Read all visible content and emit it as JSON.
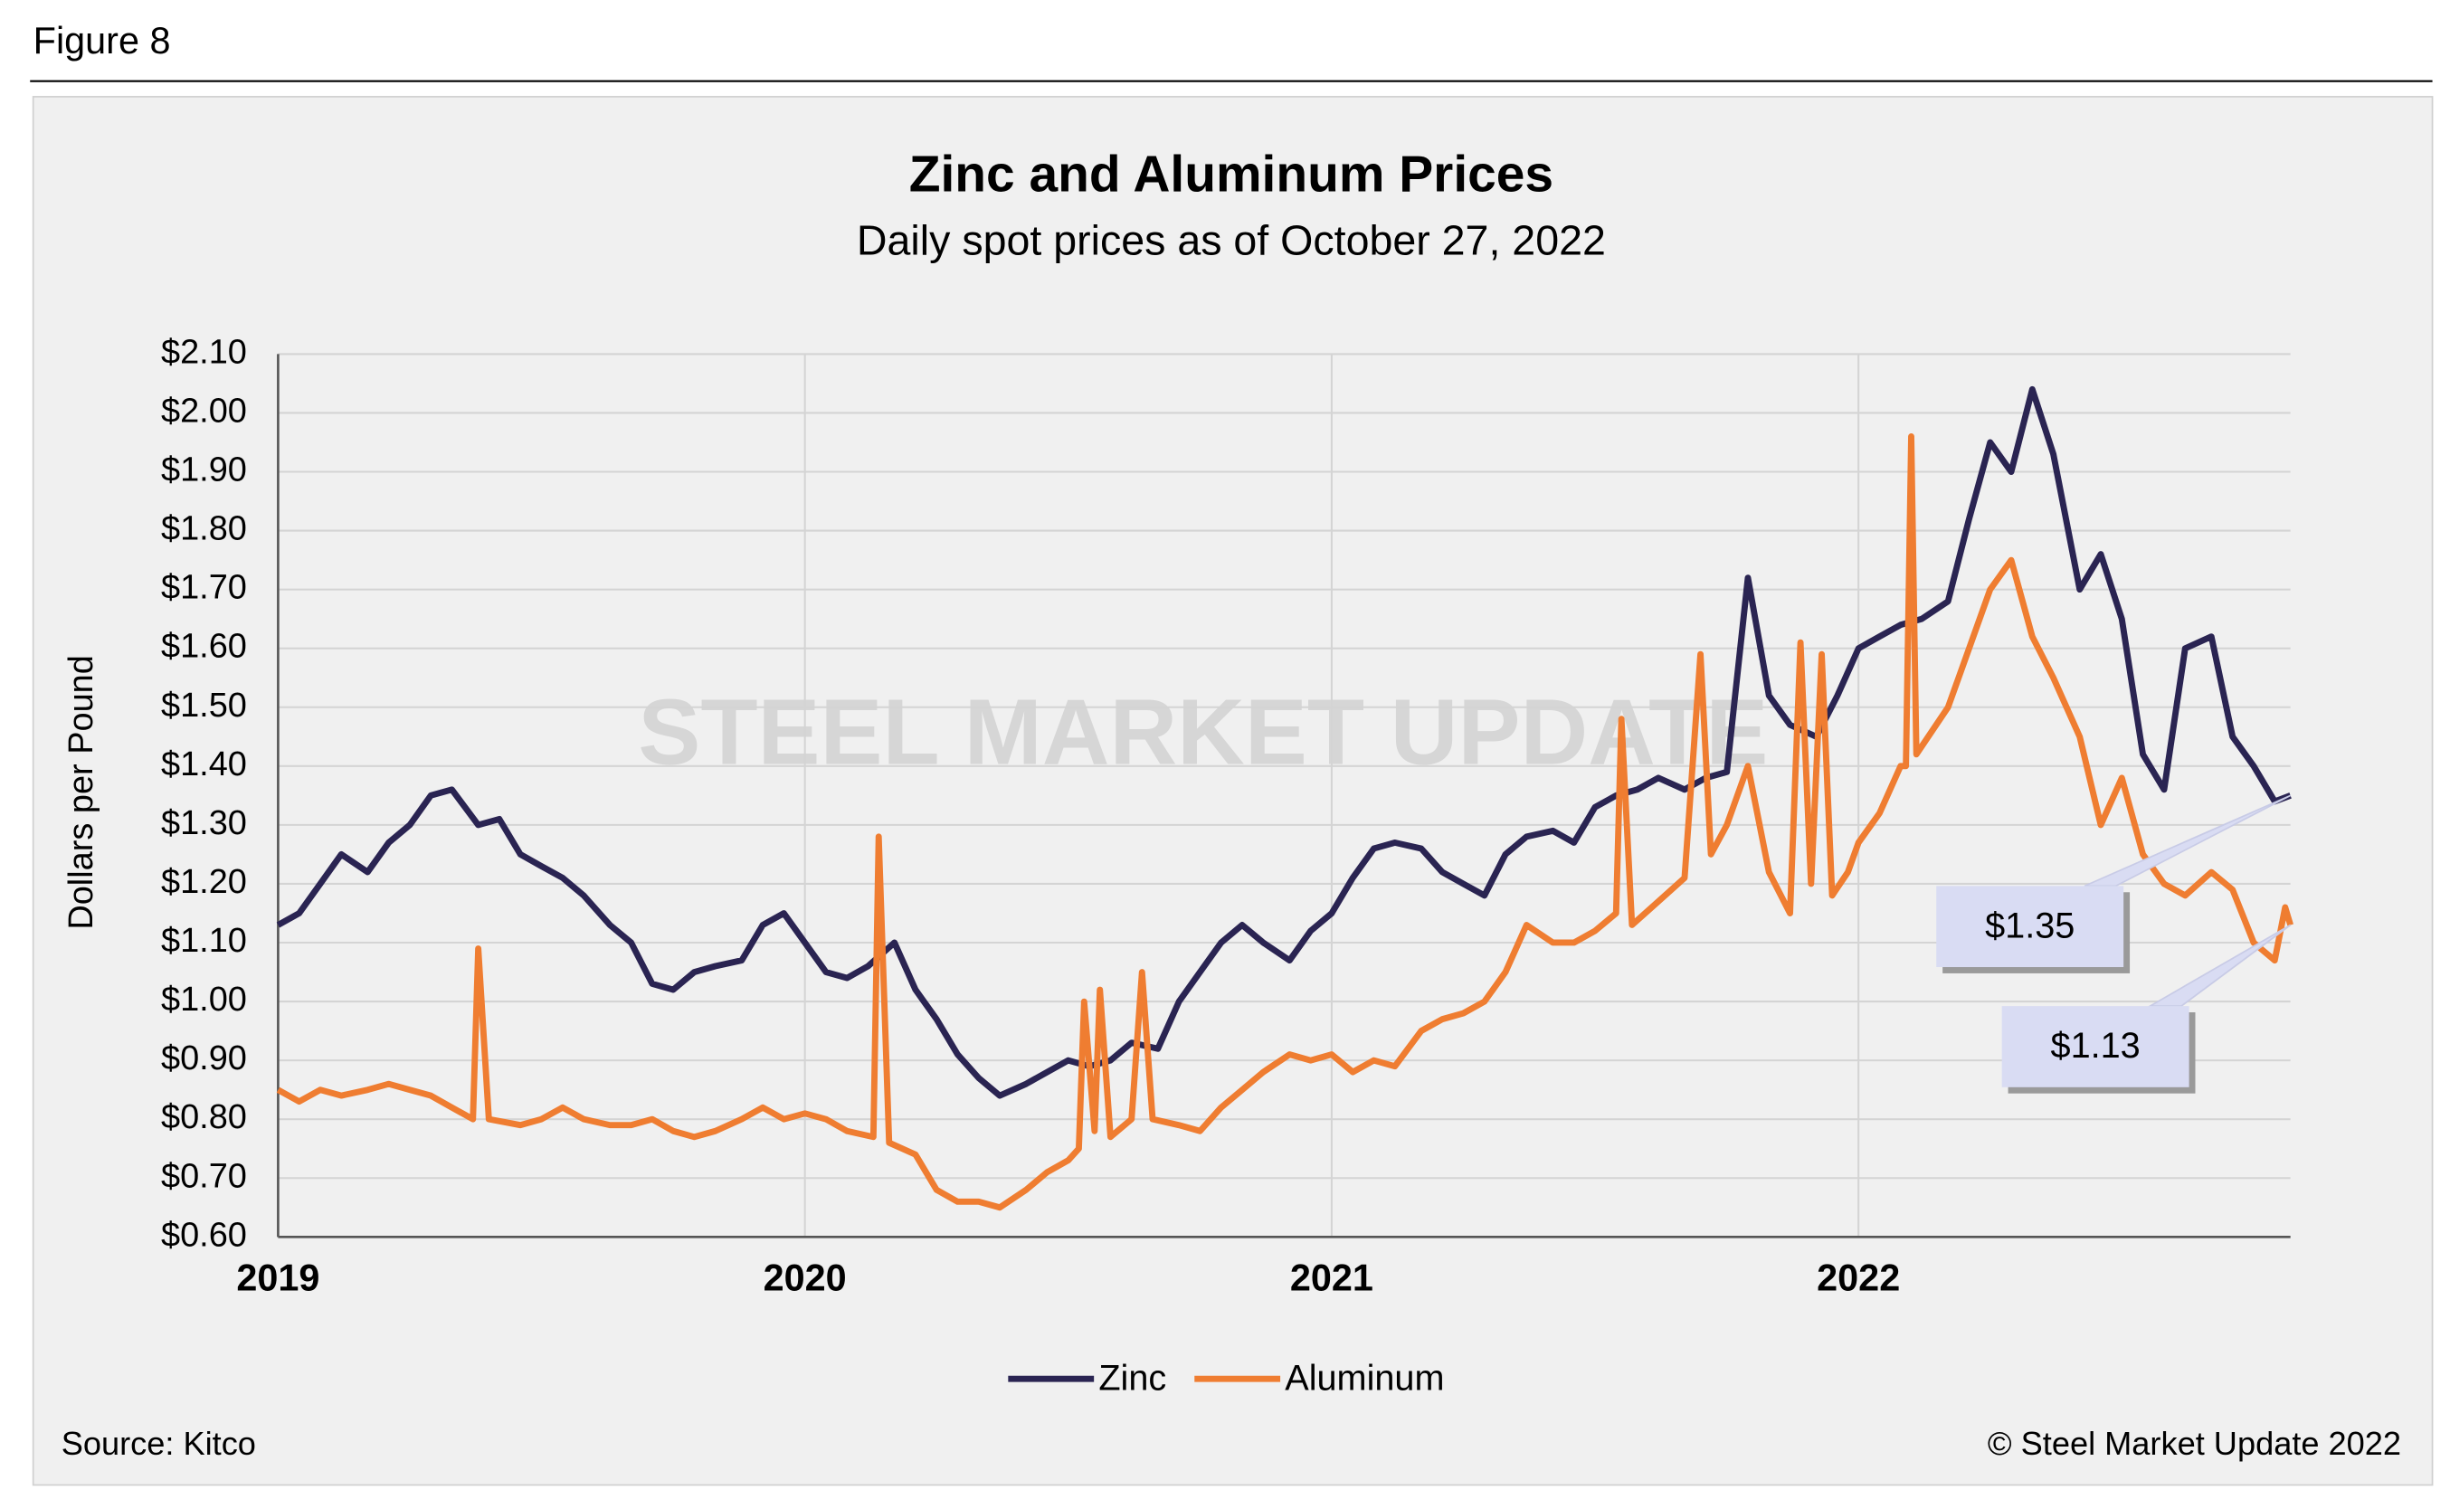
{
  "figure_label": "Figure 8",
  "source": "Source: Kitco",
  "copyright": "© Steel Market Update 2022",
  "watermark": "STEEL MARKET UPDATE",
  "chart_data": {
    "type": "line",
    "title": "Zinc and Aluminum Prices",
    "subtitle": "Daily spot prices as of October 27, 2022",
    "y_label": "Dollars per Pound",
    "xlim": [
      2019,
      2022.82
    ],
    "xticks": [
      2019,
      2020,
      2021,
      2022
    ],
    "ylim": [
      0.6,
      2.1
    ],
    "yticks": [
      {
        "value": 0.6,
        "label": "$0.60"
      },
      {
        "value": 0.7,
        "label": "$0.70"
      },
      {
        "value": 0.8,
        "label": "$0.80"
      },
      {
        "value": 0.9,
        "label": "$0.90"
      },
      {
        "value": 1.0,
        "label": "$1.00"
      },
      {
        "value": 1.1,
        "label": "$1.10"
      },
      {
        "value": 1.2,
        "label": "$1.20"
      },
      {
        "value": 1.3,
        "label": "$1.30"
      },
      {
        "value": 1.4,
        "label": "$1.40"
      },
      {
        "value": 1.5,
        "label": "$1.50"
      },
      {
        "value": 1.6,
        "label": "$1.60"
      },
      {
        "value": 1.7,
        "label": "$1.70"
      },
      {
        "value": 1.8,
        "label": "$1.80"
      },
      {
        "value": 1.9,
        "label": "$1.90"
      },
      {
        "value": 2.0,
        "label": "$2.00"
      },
      {
        "value": 2.1,
        "label": "$2.10"
      }
    ],
    "grid": true,
    "legend": "bottom",
    "annotations": [
      "$1.35",
      "$1.13"
    ],
    "series": [
      {
        "name": "Zinc",
        "color": "#2a2452",
        "x": [
          2019.0,
          2019.04,
          2019.08,
          2019.12,
          2019.17,
          2019.21,
          2019.25,
          2019.29,
          2019.33,
          2019.38,
          2019.42,
          2019.46,
          2019.5,
          2019.54,
          2019.58,
          2019.63,
          2019.67,
          2019.71,
          2019.75,
          2019.79,
          2019.83,
          2019.88,
          2019.92,
          2019.96,
          2020.0,
          2020.04,
          2020.08,
          2020.12,
          2020.17,
          2020.21,
          2020.25,
          2020.29,
          2020.33,
          2020.37,
          2020.42,
          2020.46,
          2020.5,
          2020.54,
          2020.58,
          2020.62,
          2020.67,
          2020.71,
          2020.75,
          2020.79,
          2020.83,
          2020.87,
          2020.92,
          2020.96,
          2021.0,
          2021.04,
          2021.08,
          2021.12,
          2021.17,
          2021.21,
          2021.25,
          2021.29,
          2021.33,
          2021.37,
          2021.42,
          2021.46,
          2021.5,
          2021.54,
          2021.58,
          2021.62,
          2021.67,
          2021.71,
          2021.75,
          2021.79,
          2021.83,
          2021.87,
          2021.92,
          2021.96,
          2022.0,
          2022.04,
          2022.08,
          2022.12,
          2022.17,
          2022.21,
          2022.25,
          2022.29,
          2022.33,
          2022.37,
          2022.42,
          2022.46,
          2022.5,
          2022.54,
          2022.58,
          2022.62,
          2022.67,
          2022.71,
          2022.75,
          2022.79,
          2022.82
        ],
        "values": [
          1.13,
          1.15,
          1.2,
          1.25,
          1.22,
          1.27,
          1.3,
          1.35,
          1.36,
          1.3,
          1.31,
          1.25,
          1.23,
          1.21,
          1.18,
          1.13,
          1.1,
          1.03,
          1.02,
          1.05,
          1.06,
          1.07,
          1.13,
          1.15,
          1.1,
          1.05,
          1.04,
          1.06,
          1.1,
          1.02,
          0.97,
          0.91,
          0.87,
          0.84,
          0.86,
          0.88,
          0.9,
          0.89,
          0.9,
          0.93,
          0.92,
          1.0,
          1.05,
          1.1,
          1.13,
          1.1,
          1.07,
          1.12,
          1.15,
          1.21,
          1.26,
          1.27,
          1.26,
          1.22,
          1.2,
          1.18,
          1.25,
          1.28,
          1.29,
          1.27,
          1.33,
          1.35,
          1.36,
          1.38,
          1.36,
          1.38,
          1.39,
          1.72,
          1.52,
          1.47,
          1.45,
          1.52,
          1.6,
          1.62,
          1.64,
          1.65,
          1.68,
          1.82,
          1.95,
          1.9,
          2.04,
          1.93,
          1.7,
          1.76,
          1.65,
          1.42,
          1.36,
          1.6,
          1.62,
          1.45,
          1.4,
          1.34,
          1.35
        ]
      },
      {
        "name": "Aluminum",
        "color": "#ef7d31",
        "x": [
          2019.0,
          2019.04,
          2019.08,
          2019.12,
          2019.17,
          2019.21,
          2019.25,
          2019.29,
          2019.33,
          2019.37,
          2019.38,
          2019.4,
          2019.46,
          2019.5,
          2019.54,
          2019.58,
          2019.63,
          2019.67,
          2019.71,
          2019.75,
          2019.79,
          2019.83,
          2019.88,
          2019.92,
          2019.96,
          2020.0,
          2020.04,
          2020.08,
          2020.13,
          2020.14,
          2020.16,
          2020.21,
          2020.25,
          2020.29,
          2020.33,
          2020.37,
          2020.42,
          2020.46,
          2020.5,
          2020.52,
          2020.53,
          2020.55,
          2020.56,
          2020.58,
          2020.62,
          2020.64,
          2020.66,
          2020.71,
          2020.75,
          2020.79,
          2020.83,
          2020.87,
          2020.92,
          2020.96,
          2021.0,
          2021.04,
          2021.08,
          2021.12,
          2021.17,
          2021.21,
          2021.25,
          2021.29,
          2021.33,
          2021.37,
          2021.42,
          2021.46,
          2021.5,
          2021.54,
          2021.55,
          2021.57,
          2021.62,
          2021.67,
          2021.7,
          2021.72,
          2021.75,
          2021.79,
          2021.83,
          2021.87,
          2021.89,
          2021.91,
          2021.93,
          2021.95,
          2021.98,
          2022.0,
          2022.04,
          2022.08,
          2022.09,
          2022.1,
          2022.11,
          2022.17,
          2022.21,
          2022.25,
          2022.29,
          2022.33,
          2022.37,
          2022.42,
          2022.46,
          2022.5,
          2022.54,
          2022.58,
          2022.62,
          2022.67,
          2022.71,
          2022.75,
          2022.79,
          2022.81,
          2022.82
        ],
        "values": [
          0.85,
          0.83,
          0.85,
          0.84,
          0.85,
          0.86,
          0.85,
          0.84,
          0.82,
          0.8,
          1.09,
          0.8,
          0.79,
          0.8,
          0.82,
          0.8,
          0.79,
          0.79,
          0.8,
          0.78,
          0.77,
          0.78,
          0.8,
          0.82,
          0.8,
          0.81,
          0.8,
          0.78,
          0.77,
          1.28,
          0.76,
          0.74,
          0.68,
          0.66,
          0.66,
          0.65,
          0.68,
          0.71,
          0.73,
          0.75,
          1.0,
          0.78,
          1.02,
          0.77,
          0.8,
          1.05,
          0.8,
          0.79,
          0.78,
          0.82,
          0.85,
          0.88,
          0.91,
          0.9,
          0.91,
          0.88,
          0.9,
          0.89,
          0.95,
          0.97,
          0.98,
          1.0,
          1.05,
          1.13,
          1.1,
          1.1,
          1.12,
          1.15,
          1.48,
          1.13,
          1.17,
          1.21,
          1.59,
          1.25,
          1.3,
          1.4,
          1.22,
          1.15,
          1.61,
          1.2,
          1.59,
          1.18,
          1.22,
          1.27,
          1.32,
          1.4,
          1.4,
          1.96,
          1.42,
          1.5,
          1.6,
          1.7,
          1.75,
          1.62,
          1.55,
          1.45,
          1.3,
          1.38,
          1.25,
          1.2,
          1.18,
          1.22,
          1.19,
          1.1,
          1.07,
          1.16,
          1.13
        ]
      }
    ]
  }
}
